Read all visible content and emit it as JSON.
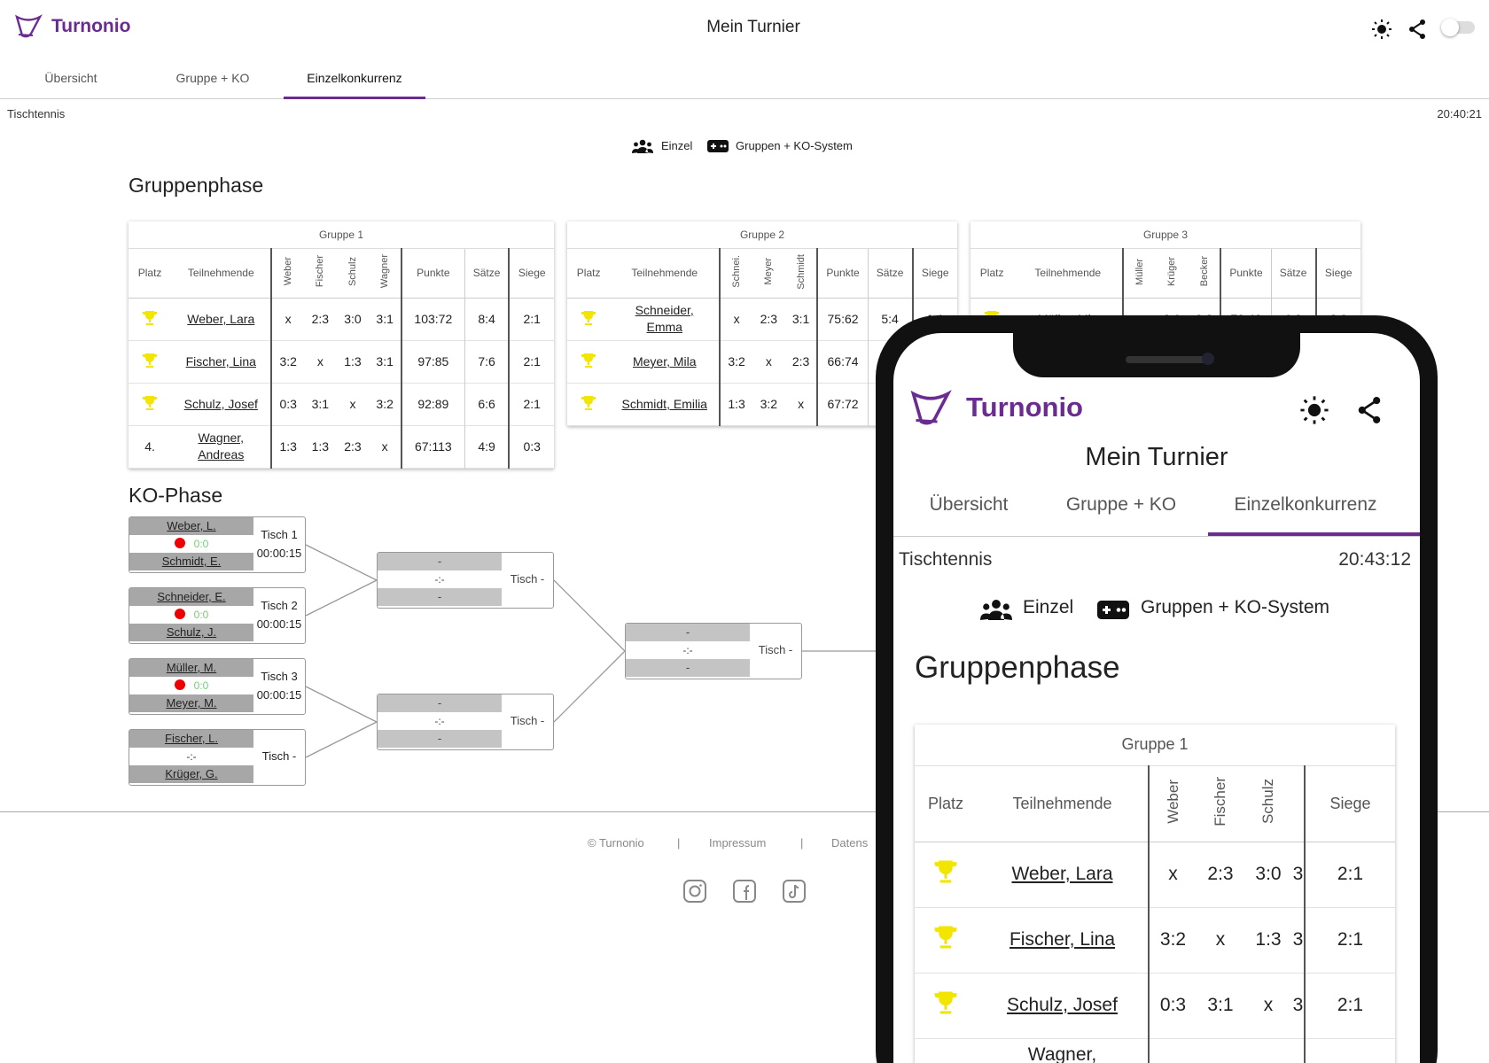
{
  "app": {
    "brand": "Turnonio",
    "title": "Mein Turnier"
  },
  "tabs": [
    "Übersicht",
    "Gruppe + KO",
    "Einzelkonkurrenz"
  ],
  "sport": "Tischtennis",
  "time": "20:40:21",
  "mode": {
    "type": "Einzel",
    "system": "Gruppen + KO-System"
  },
  "sections": {
    "group_phase": "Gruppenphase",
    "ko_phase": "KO-Phase"
  },
  "cols": {
    "platz": "Platz",
    "teilnehmende": "Teilnehmende",
    "punkte": "Punkte",
    "saetze": "Sätze",
    "siege": "Siege"
  },
  "groups": [
    {
      "title": "Gruppe 1",
      "opponents": [
        "Weber",
        "Fischer",
        "Schulz",
        "Wagner"
      ],
      "rows": [
        {
          "place": "trophy",
          "name": "Weber, Lara",
          "res": [
            "x",
            "2:3",
            "3:0",
            "3:1"
          ],
          "punkte": "103:72",
          "saetze": "8:4",
          "siege": "2:1"
        },
        {
          "place": "trophy",
          "name": "Fischer, Lina",
          "res": [
            "3:2",
            "x",
            "1:3",
            "3:1"
          ],
          "punkte": "97:85",
          "saetze": "7:6",
          "siege": "2:1"
        },
        {
          "place": "trophy",
          "name": "Schulz, Josef",
          "res": [
            "0:3",
            "3:1",
            "x",
            "3:2"
          ],
          "punkte": "92:89",
          "saetze": "6:6",
          "siege": "2:1"
        },
        {
          "place": "4.",
          "name": "Wagner, Andreas",
          "res": [
            "1:3",
            "1:3",
            "2:3",
            "x"
          ],
          "punkte": "67:113",
          "saetze": "4:9",
          "siege": "0:3"
        }
      ]
    },
    {
      "title": "Gruppe 2",
      "opponents": [
        "Schnei.",
        "Meyer",
        "Schmidt"
      ],
      "rows": [
        {
          "place": "trophy",
          "name": "Schneider, Emma",
          "res": [
            "x",
            "2:3",
            "3:1"
          ],
          "punkte": "75:62",
          "saetze": "5:4",
          "siege": "1:1"
        },
        {
          "place": "trophy",
          "name": "Meyer, Mila",
          "res": [
            "3:2",
            "x",
            "2:3"
          ],
          "punkte": "66:74",
          "saetze": "5",
          "siege": ""
        },
        {
          "place": "trophy",
          "name": "Schmidt, Emilia",
          "res": [
            "1:3",
            "3:2",
            "x"
          ],
          "punkte": "67:72",
          "saetze": "",
          "siege": ""
        }
      ]
    },
    {
      "title": "Gruppe 3",
      "opponents": [
        "Müller",
        "Krüger",
        "Becker"
      ],
      "rows": [
        {
          "place": "trophy",
          "name": "Müller, Mia",
          "res": [
            "x",
            "3:0",
            "3:2"
          ],
          "punkte": "73:48",
          "saetze": "6:2",
          "siege": "2:0"
        }
      ]
    }
  ],
  "ko": {
    "round1": [
      {
        "p1": "Weber, L.",
        "p2": "Schmidt, E.",
        "score": "0:0",
        "live": true,
        "table": "Tisch 1",
        "timer": "00:00:15"
      },
      {
        "p1": "Schneider, E.",
        "p2": "Schulz, J.",
        "score": "0:0",
        "live": true,
        "table": "Tisch 2",
        "timer": "00:00:15"
      },
      {
        "p1": "Müller, M.",
        "p2": "Meyer, M.",
        "score": "0:0",
        "live": true,
        "table": "Tisch 3",
        "timer": "00:00:15"
      },
      {
        "p1": "Fischer, L.",
        "p2": "Krüger, G.",
        "score": "-:-",
        "live": false,
        "table": "Tisch -",
        "timer": ""
      }
    ],
    "placeholder": {
      "p": "-",
      "score": "-:-",
      "table": "Tisch -"
    }
  },
  "footer": {
    "copy": "© Turnonio",
    "sep": "|",
    "impressum": "Impressum",
    "datenschutz": "Datens"
  },
  "social": [
    "instagram-icon",
    "facebook-icon",
    "tiktok-icon"
  ],
  "mobile": {
    "time": "20:43:12",
    "group_cols": [
      "Weber",
      "Fischer",
      "Schulz"
    ],
    "rows": [
      {
        "name": "Weber, Lara",
        "res": [
          "x",
          "2:3",
          "3:0",
          "3"
        ],
        "siege": "2:1"
      },
      {
        "name": "Fischer, Lina",
        "res": [
          "3:2",
          "x",
          "1:3",
          "3"
        ],
        "siege": "2:1"
      },
      {
        "name": "Schulz, Josef",
        "res": [
          "0:3",
          "3:1",
          "x",
          "3"
        ],
        "siege": "2:1"
      },
      {
        "name": "Wagner,",
        "res": [
          "",
          "",
          "",
          ""
        ],
        "siege": ""
      }
    ]
  },
  "colors": {
    "brand": "#6a2c91",
    "trophy": "#f2e600",
    "live": "#e00000",
    "score": "#77cc77"
  }
}
